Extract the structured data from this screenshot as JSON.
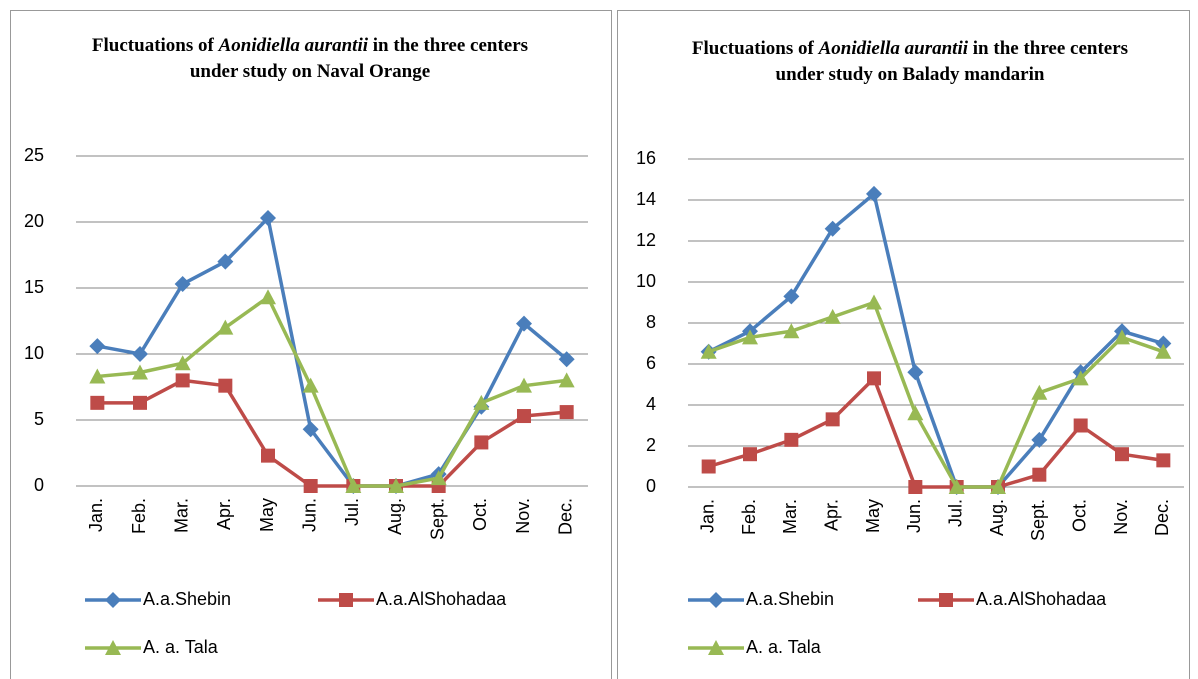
{
  "chart_data": [
    {
      "type": "line",
      "title_parts": [
        "Fluctuations of ",
        "Aonidiella aurantii",
        " in the three centers under study on Naval Orange"
      ],
      "categories": [
        "Jan.",
        "Feb.",
        "Mar.",
        "Apr.",
        "May",
        "Jun.",
        "Jul.",
        "Aug.",
        "Sept.",
        "Oct.",
        "Nov.",
        "Dec."
      ],
      "series": [
        {
          "name": "A.a.Shebin",
          "color": "#4a7ebb",
          "marker": "diamond",
          "values": [
            10.6,
            10,
            15.3,
            17,
            20.3,
            4.3,
            0,
            0,
            0.9,
            6,
            12.3,
            9.6
          ]
        },
        {
          "name": "A.a.AlShohadaa",
          "color": "#be4b48",
          "marker": "square",
          "values": [
            6.3,
            6.3,
            8,
            7.6,
            2.3,
            0,
            0,
            0,
            0,
            3.3,
            5.3,
            5.6
          ]
        },
        {
          "name": "A. a. Tala",
          "color": "#98b954",
          "marker": "triangle",
          "values": [
            8.3,
            8.6,
            9.3,
            12,
            14.3,
            7.6,
            0,
            0,
            0.6,
            6.3,
            7.6,
            8
          ]
        }
      ],
      "ylim": [
        0,
        25
      ],
      "yticks": [
        0,
        5,
        10,
        15,
        20,
        25
      ],
      "grid": true,
      "legend": "bottom"
    },
    {
      "type": "line",
      "title_parts": [
        "Fluctuations of ",
        "Aonidiella aurantii",
        " in the three centers under study on Balady mandarin"
      ],
      "categories": [
        "Jan.",
        "Feb.",
        "Mar.",
        "Apr.",
        "May",
        "Jun.",
        "Jul.",
        "Aug.",
        "Sept.",
        "Oct.",
        "Nov.",
        "Dec."
      ],
      "series": [
        {
          "name": "A.a.Shebin",
          "color": "#4a7ebb",
          "marker": "diamond",
          "values": [
            6.6,
            7.6,
            9.3,
            12.6,
            14.3,
            5.6,
            0,
            0,
            2.3,
            5.6,
            7.6,
            7
          ]
        },
        {
          "name": "A.a.AlShohadaa",
          "color": "#be4b48",
          "marker": "square",
          "values": [
            1,
            1.6,
            2.3,
            3.3,
            5.3,
            0,
            0,
            0,
            0.6,
            3,
            1.6,
            1.3
          ]
        },
        {
          "name": "A. a. Tala",
          "color": "#98b954",
          "marker": "triangle",
          "values": [
            6.6,
            7.3,
            7.6,
            8.3,
            9,
            3.6,
            0,
            0,
            4.6,
            5.3,
            7.3,
            6.6
          ]
        }
      ],
      "ylim": [
        0,
        16
      ],
      "yticks": [
        0,
        2,
        4,
        6,
        8,
        10,
        12,
        14,
        16
      ],
      "grid": true,
      "legend": "bottom"
    }
  ]
}
